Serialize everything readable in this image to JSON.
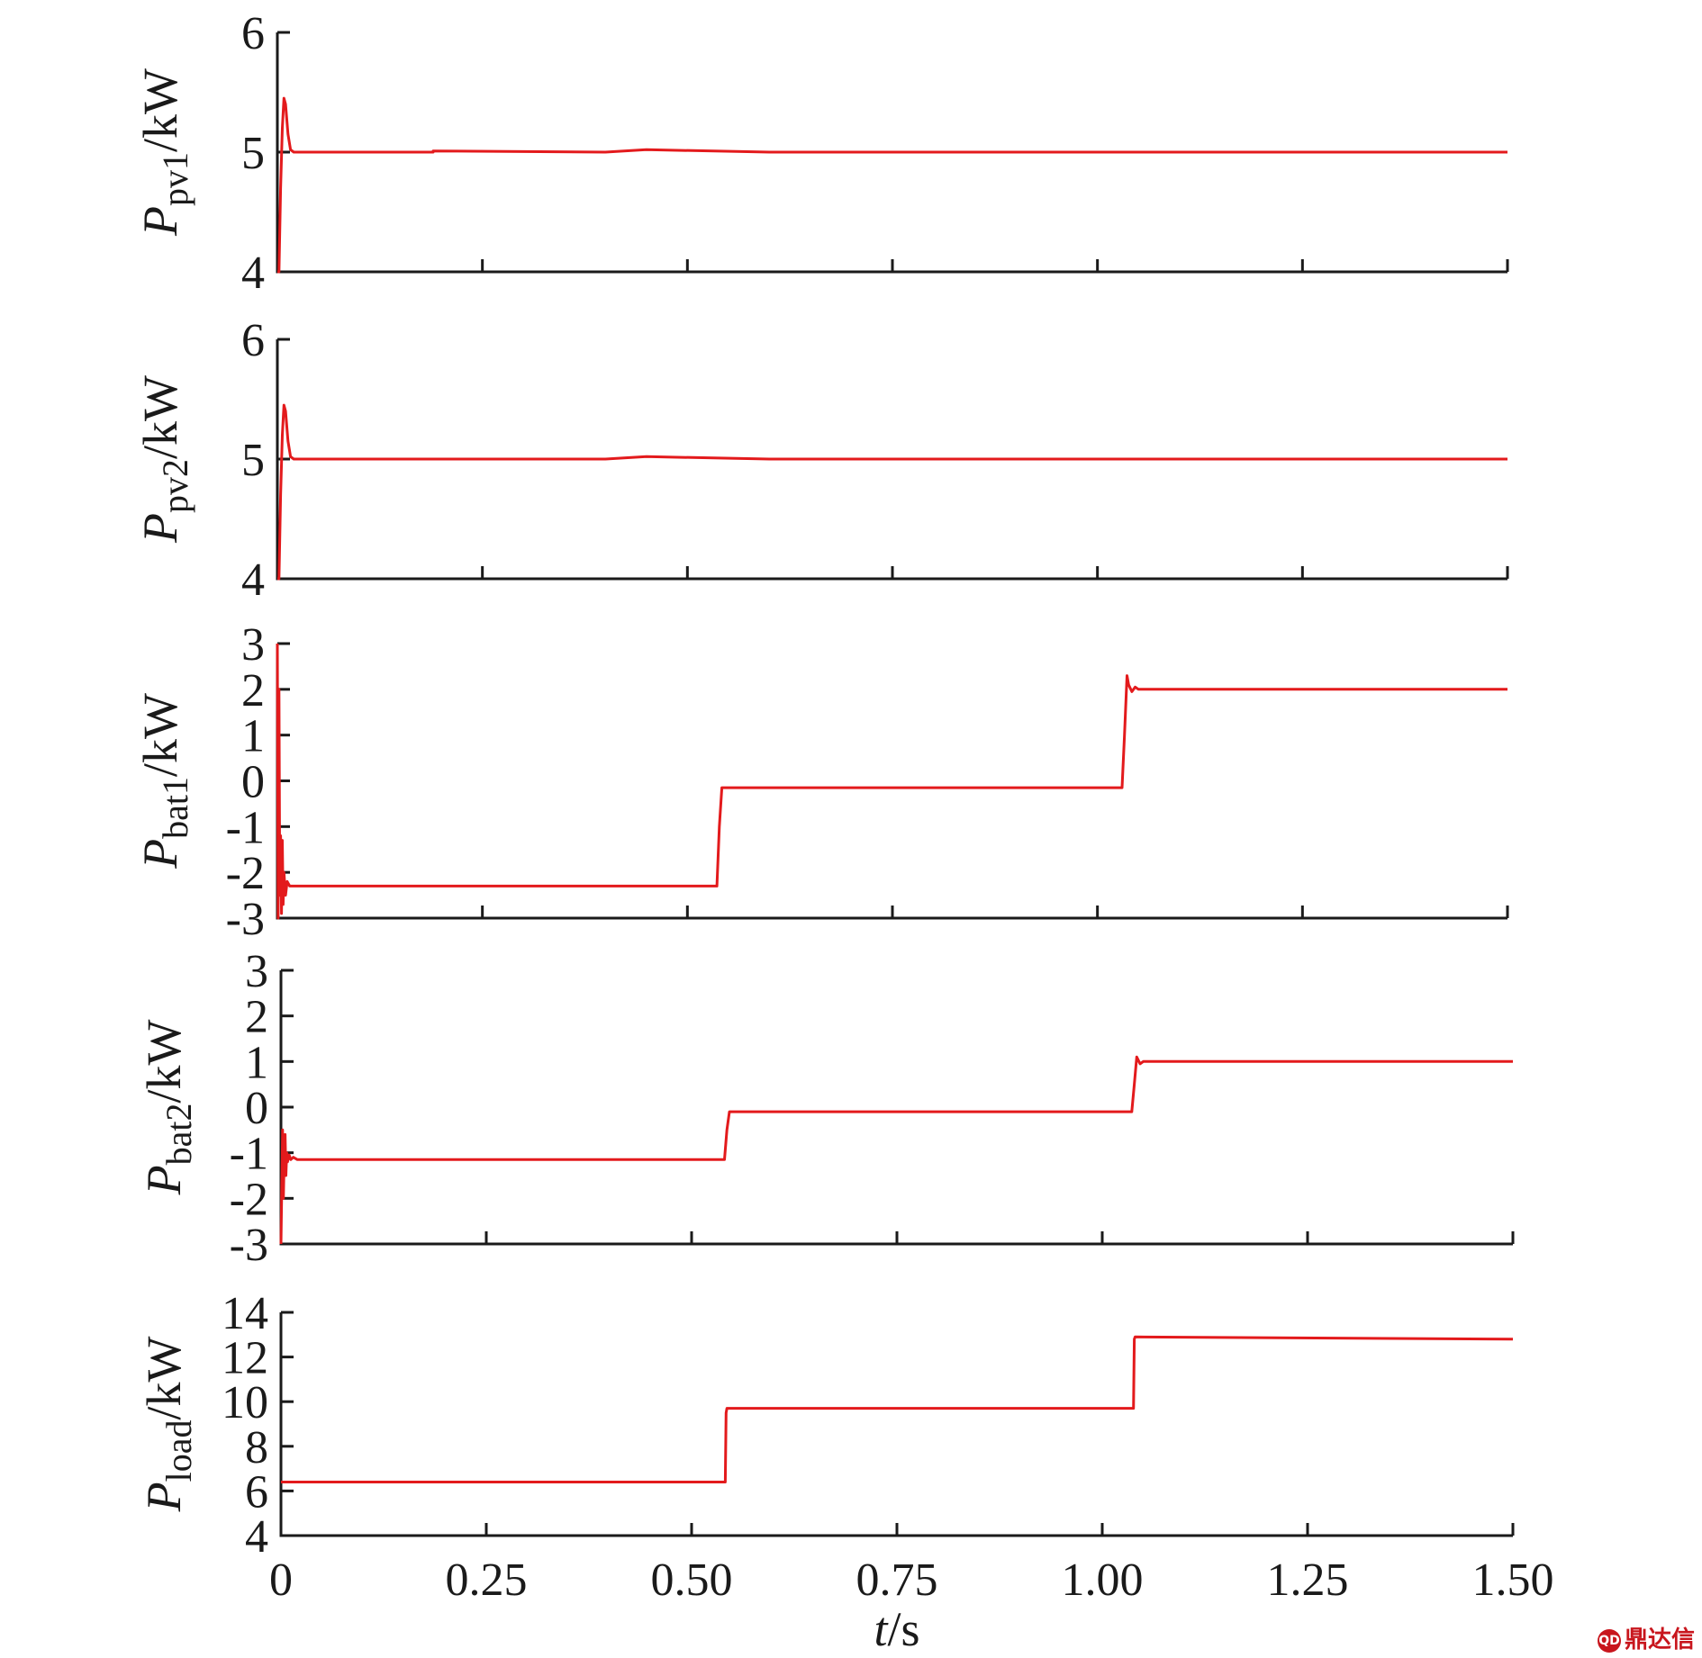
{
  "chart_data": [
    {
      "type": "line",
      "panel": "pv1",
      "ylabel_main": "P",
      "ylabel_sub": "pv1",
      "ylabel_unit": "/kW",
      "ylim": [
        4,
        6
      ],
      "yticks": [
        4,
        5,
        6
      ],
      "xlim": [
        0,
        1.5
      ],
      "color": "#e31a1c",
      "series": [
        {
          "x": [
            0,
            0.002,
            0.004,
            0.006,
            0.008,
            0.01,
            0.013,
            0.016,
            0.02,
            0.03,
            0.19,
            0.19,
            0.4,
            0.45,
            0.6,
            1.5
          ],
          "y": [
            4.0,
            4.0,
            4.7,
            5.2,
            5.45,
            5.4,
            5.15,
            5.02,
            5.0,
            5.0,
            5.0,
            5.01,
            5.0,
            5.02,
            5.0,
            5.0
          ]
        }
      ]
    },
    {
      "type": "line",
      "panel": "pv2",
      "ylabel_main": "P",
      "ylabel_sub": "pv2",
      "ylabel_unit": "/kW",
      "ylim": [
        4,
        6
      ],
      "yticks": [
        4,
        5,
        6
      ],
      "xlim": [
        0,
        1.5
      ],
      "color": "#e31a1c",
      "series": [
        {
          "x": [
            0,
            0.002,
            0.004,
            0.006,
            0.008,
            0.01,
            0.013,
            0.016,
            0.02,
            0.03,
            0.4,
            0.45,
            0.6,
            1.5
          ],
          "y": [
            4.0,
            4.0,
            4.7,
            5.2,
            5.45,
            5.4,
            5.15,
            5.02,
            5.0,
            5.0,
            5.0,
            5.02,
            5.0,
            5.0
          ]
        }
      ]
    },
    {
      "type": "line",
      "panel": "bat1",
      "ylabel_main": "P",
      "ylabel_sub": "bat1",
      "ylabel_unit": "/kW",
      "ylim": [
        -3,
        3
      ],
      "yticks": [
        -3,
        -2,
        -1,
        0,
        1,
        2,
        3
      ],
      "xlim": [
        0,
        1.5
      ],
      "color": "#e31a1c",
      "series": [
        {
          "x": [
            0,
            0.001,
            0.002,
            0.003,
            0.004,
            0.005,
            0.006,
            0.007,
            0.008,
            0.01,
            0.012,
            0.015,
            0.02,
            0.536,
            0.539,
            0.542,
            0.545,
            1.03,
            1.033,
            1.036,
            1.038,
            1.042,
            1.046,
            1.05,
            1.5
          ],
          "y": [
            3.0,
            -3.0,
            2.0,
            -2.5,
            -1.2,
            -2.9,
            -1.3,
            -2.7,
            -2.0,
            -2.5,
            -2.2,
            -2.3,
            -2.3,
            -2.3,
            -1.0,
            -0.15,
            -0.15,
            -0.15,
            1.0,
            2.3,
            2.1,
            1.95,
            2.05,
            2.0,
            2.0
          ]
        }
      ]
    },
    {
      "type": "line",
      "panel": "bat2",
      "ylabel_main": "P",
      "ylabel_sub": "bat2",
      "ylabel_unit": "/kW",
      "ylim": [
        -3,
        3
      ],
      "yticks": [
        -3,
        -2,
        -1,
        0,
        1,
        2,
        3
      ],
      "xlim": [
        0,
        1.5
      ],
      "color": "#e31a1c",
      "series": [
        {
          "x": [
            0,
            0.002,
            0.003,
            0.004,
            0.005,
            0.006,
            0.007,
            0.008,
            0.01,
            0.012,
            0.015,
            0.02,
            0.54,
            0.543,
            0.546,
            0.55,
            1.036,
            1.039,
            1.042,
            1.046,
            1.05,
            1.5
          ],
          "y": [
            -3.0,
            -0.5,
            -2.0,
            -1.1,
            -0.6,
            -1.5,
            -1.0,
            -1.2,
            -1.05,
            -1.15,
            -1.1,
            -1.15,
            -1.15,
            -0.5,
            -0.1,
            -0.1,
            -0.1,
            0.5,
            1.1,
            0.95,
            1.0,
            1.0
          ]
        }
      ]
    },
    {
      "type": "line",
      "panel": "load",
      "ylabel_main": "P",
      "ylabel_sub": "load",
      "ylabel_unit": "/kW",
      "ylim": [
        4,
        14
      ],
      "yticks": [
        4,
        6,
        8,
        10,
        12,
        14
      ],
      "xlim": [
        0,
        1.5
      ],
      "xticks": [
        0,
        0.25,
        0.5,
        0.75,
        1.0,
        1.25,
        1.5
      ],
      "xticklabels": [
        "0",
        "0.25",
        "0.50",
        "0.75",
        "1.00",
        "1.25",
        "1.50"
      ],
      "xlabel_main": "t",
      "xlabel_unit": "/s",
      "color": "#e31a1c",
      "series": [
        {
          "x": [
            0,
            0.541,
            0.542,
            0.543,
            1.038,
            1.039,
            1.04,
            1.5
          ],
          "y": [
            6.4,
            6.4,
            9.5,
            9.7,
            9.7,
            12.8,
            12.9,
            12.8
          ]
        }
      ]
    }
  ],
  "watermark": {
    "logo_text": "QD",
    "text": "鼎达信"
  }
}
